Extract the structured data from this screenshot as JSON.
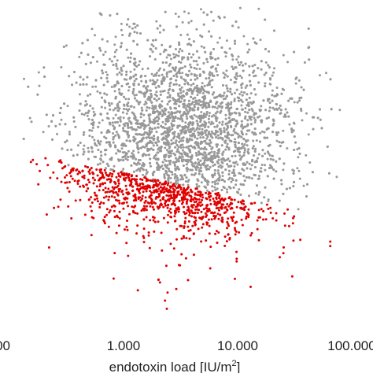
{
  "chart_data": {
    "type": "scatter",
    "title": "",
    "xlabel": {
      "text": "endotoxin load [IU/m",
      "superscript": "2",
      "suffix": "]"
    },
    "ylabel": "",
    "x_scale": "log",
    "xlim": [
      0.1,
      100
    ],
    "ylim": [
      0,
      1
    ],
    "x_ticks": [
      {
        "value": 1,
        "label": "1.000"
      },
      {
        "value": 10,
        "label": "10.000"
      },
      {
        "value": 100,
        "label": "100.000"
      }
    ],
    "x_tick_partial": {
      "value": 0.1,
      "label": "00"
    },
    "grid": false,
    "legend": "none",
    "series": [
      {
        "color": "#999999",
        "count": 4200,
        "description_points": "dense cloud, centered near x≈2.5, upper region"
      },
      {
        "color": "#e00000",
        "count": 900,
        "description_points": "lower band below gray cloud, x≈0.3–30"
      }
    ]
  }
}
